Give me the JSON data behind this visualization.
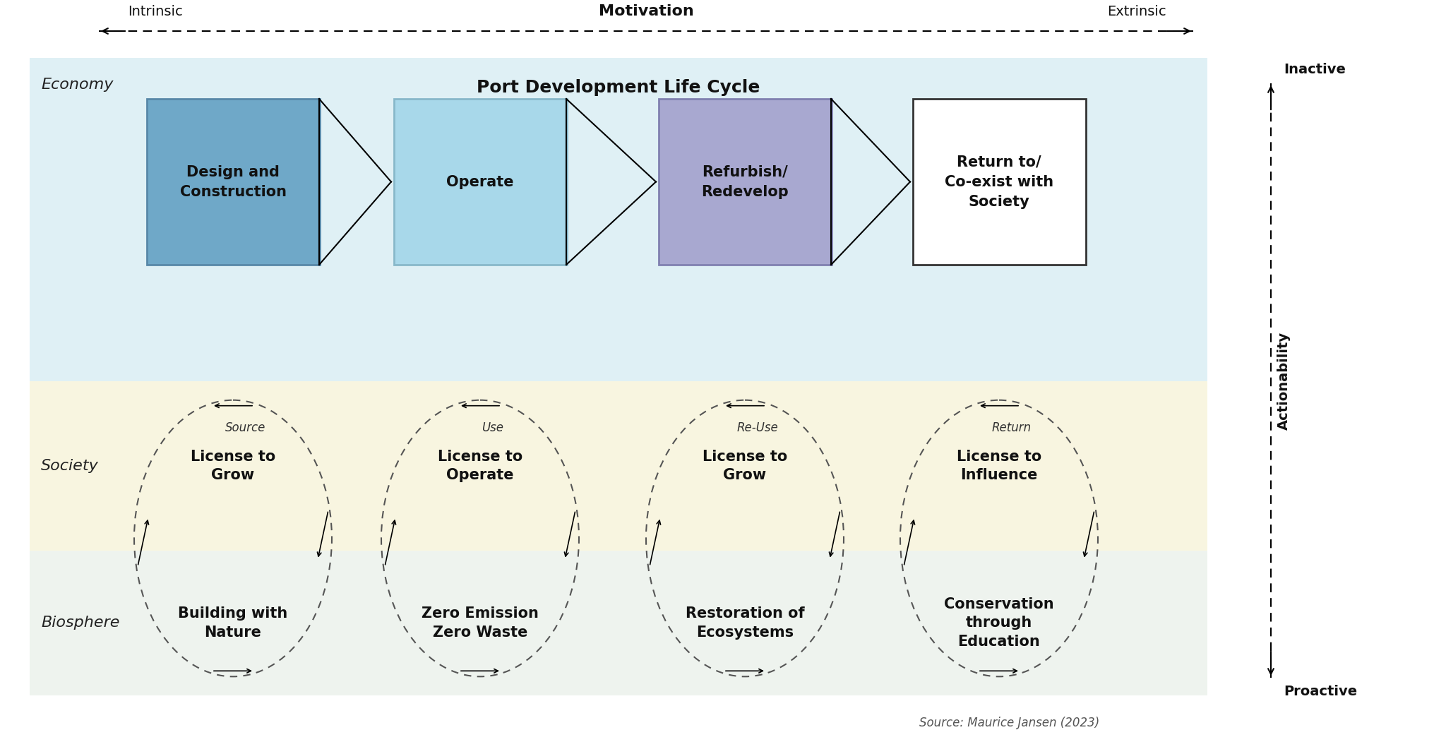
{
  "bg_color": "#ffffff",
  "economy_bg": "#dff0f5",
  "society_bg": "#f8f5e0",
  "biosphere_bg": "#eef3ee",
  "title": "Port Development Life Cycle",
  "motivation_label": "Motivation",
  "intrinsic_label": "Intrinsic",
  "extrinsic_label": "Extrinsic",
  "actionability_label": "Actionability",
  "inactive_label": "Inactive",
  "proactive_label": "Proactive",
  "economy_label": "Economy",
  "society_label": "Society",
  "biosphere_label": "Biosphere",
  "source_text": "Source: Maurice Jansen (2023)",
  "box_colors": [
    "#6fa8c8",
    "#a8d8ea",
    "#a8a8d0",
    "#ffffff"
  ],
  "box_borders": [
    "#5888a8",
    "#88b8ca",
    "#8080b0",
    "#333333"
  ],
  "box_labels": [
    "Design and\nConstruction",
    "Operate",
    "Refurbish/\nRedevelop",
    "Return to/\nCo-exist with\nSociety"
  ],
  "cycle_top_labels": [
    "Source",
    "Use",
    "Re-Use",
    "Return"
  ],
  "society_labels": [
    "License to\nGrow",
    "License to\nOperate",
    "License to\nGrow",
    "License to\nInfluence"
  ],
  "biosphere_labels": [
    "Building with\nNature",
    "Zero Emission\nZero Waste",
    "Restoration of\nEcosystems",
    "Conservation\nthrough\nEducation"
  ]
}
